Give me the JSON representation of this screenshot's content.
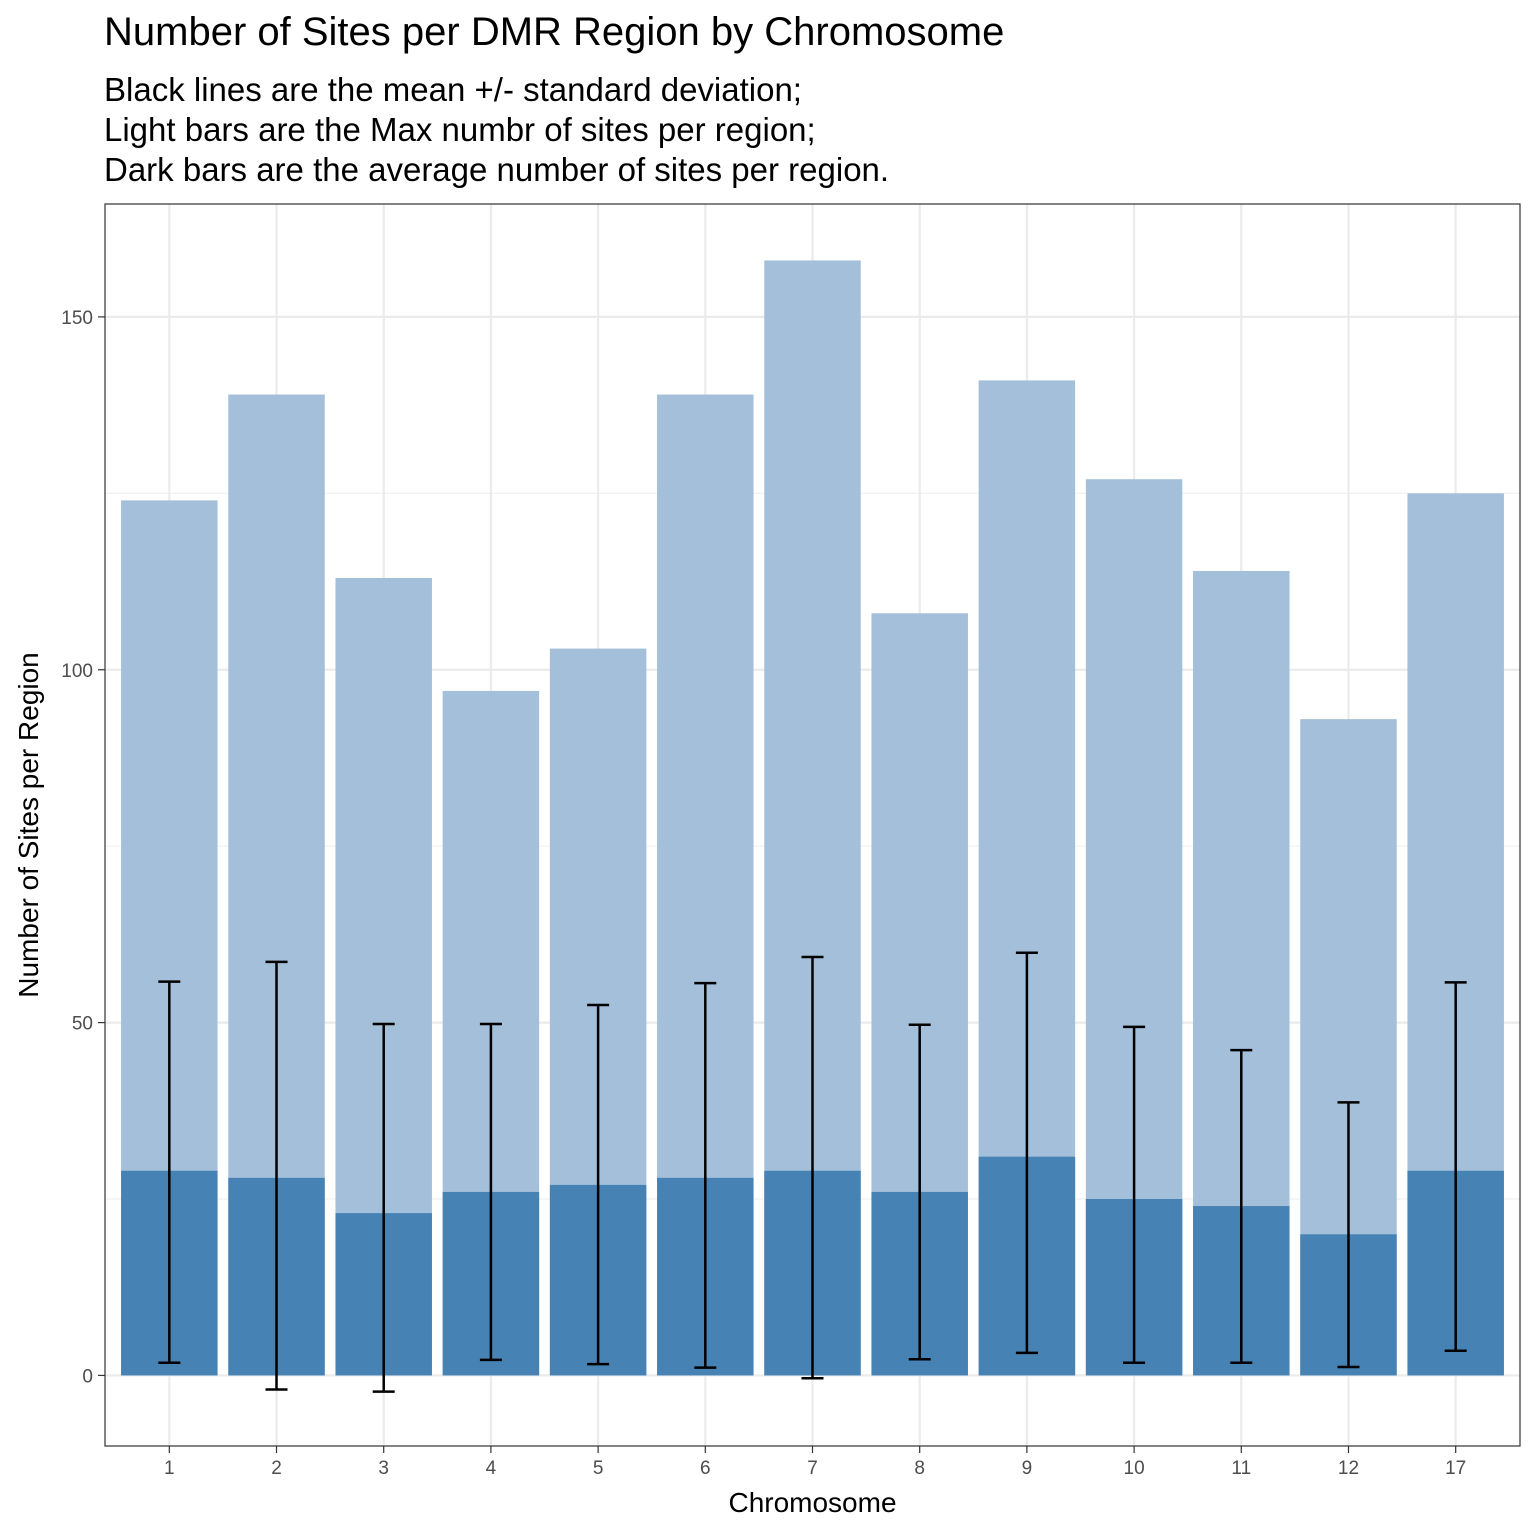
{
  "chart_data": {
    "type": "bar",
    "title": "Number of Sites per DMR Region by Chromosome",
    "subtitle_lines": [
      "Black lines are the mean +/- standard deviation;",
      "Light bars are the Max numbr of sites per region;",
      "Dark bars are the average number of sites per region."
    ],
    "xlabel": "Chromosome",
    "ylabel": "Number of Sites per Region",
    "categories": [
      "1",
      "2",
      "3",
      "4",
      "5",
      "6",
      "7",
      "8",
      "9",
      "10",
      "11",
      "12",
      "17"
    ],
    "ylim": [
      -10,
      166
    ],
    "yticks": [
      0,
      50,
      100,
      150
    ],
    "ytick_labels": [
      "0",
      "50",
      "100",
      "150"
    ],
    "grid": true,
    "series": [
      {
        "name": "Max numbr of sites per region",
        "color": "#a3bfd9",
        "values": [
          124,
          139,
          113,
          97,
          103,
          139,
          158,
          108,
          141,
          127,
          114,
          93,
          125
        ]
      },
      {
        "name": "average number of sites per region",
        "color": "#4682b4",
        "values": [
          29,
          28,
          23,
          26,
          27,
          28,
          29,
          26,
          31,
          25,
          24,
          20,
          29
        ]
      }
    ],
    "error_bars": {
      "name": "mean +/- standard deviation",
      "color": "#000000",
      "lower": [
        1.8,
        -2,
        -2.3,
        2.2,
        1.6,
        1.1,
        -0.4,
        2.3,
        3.2,
        1.8,
        1.8,
        1.2,
        3.5
      ],
      "upper": [
        55.8,
        58.6,
        49.8,
        49.8,
        52.5,
        55.6,
        59.3,
        49.7,
        59.9,
        49.4,
        46.1,
        38.7,
        55.7
      ]
    }
  }
}
